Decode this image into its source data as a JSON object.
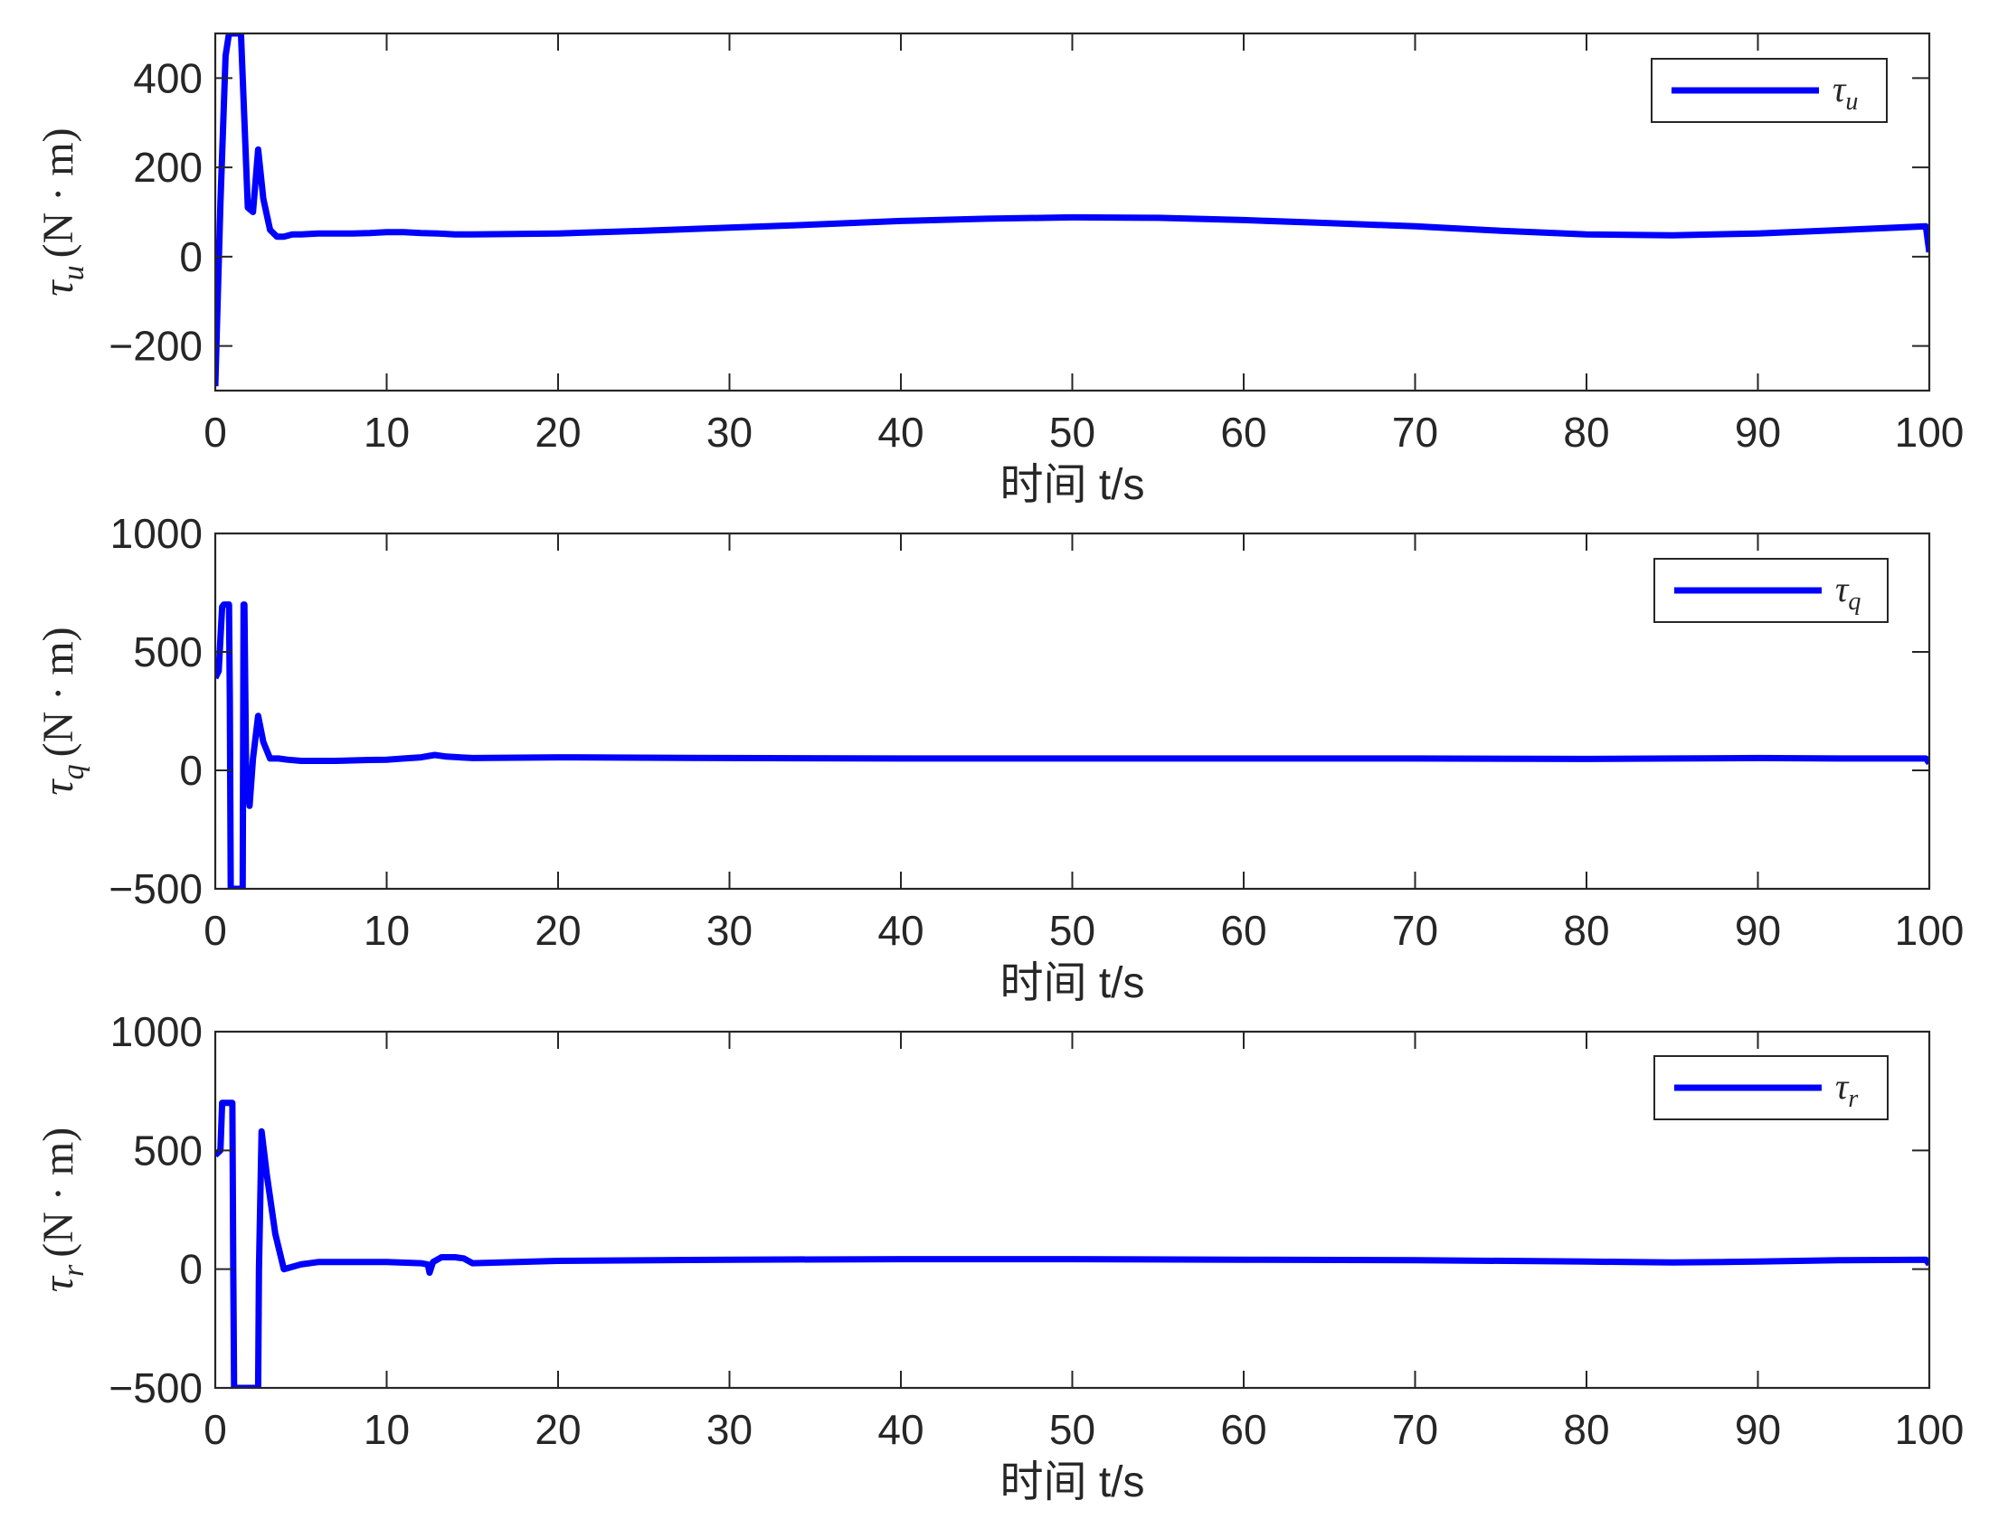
{
  "chart_data": [
    {
      "type": "line",
      "xlabel": "时间 t/s",
      "ylabel_symbol": "τ",
      "ylabel_subscript": "u",
      "ylabel_unit": "(N · m)",
      "xlim": [
        0,
        100
      ],
      "ylim": [
        -300,
        500
      ],
      "xticks": [
        0,
        10,
        20,
        30,
        40,
        50,
        60,
        70,
        80,
        90,
        100
      ],
      "yticks": [
        -200,
        0,
        200,
        400
      ],
      "ytick_labels": [
        "−200",
        "0",
        "200",
        "400"
      ],
      "grid": false,
      "legend_location": "top-right",
      "series": [
        {
          "name_symbol": "τ",
          "name_subscript": "u",
          "color": "#0000ff",
          "x": [
            0,
            0.3,
            0.6,
            0.8,
            0.9,
            1.5,
            1.9,
            2.2,
            2.5,
            2.8,
            3.2,
            3.6,
            4.0,
            4.5,
            5,
            6,
            7,
            8,
            9,
            10,
            11,
            12,
            13,
            14,
            15,
            20,
            25,
            30,
            35,
            40,
            45,
            50,
            55,
            60,
            65,
            70,
            75,
            80,
            85,
            90,
            95,
            99.8,
            100
          ],
          "y": [
            -290,
            120,
            450,
            500,
            500,
            500,
            110,
            100,
            240,
            130,
            60,
            45,
            45,
            50,
            50,
            52,
            52,
            52,
            53,
            55,
            55,
            53,
            52,
            50,
            50,
            52,
            58,
            65,
            72,
            80,
            85,
            88,
            87,
            82,
            75,
            68,
            58,
            50,
            48,
            52,
            60,
            68,
            10
          ]
        }
      ]
    },
    {
      "type": "line",
      "xlabel": "时间 t/s",
      "ylabel_symbol": "τ",
      "ylabel_subscript": "q",
      "ylabel_unit": "(N · m)",
      "xlim": [
        0,
        100
      ],
      "ylim": [
        -500,
        1000
      ],
      "xticks": [
        0,
        10,
        20,
        30,
        40,
        50,
        60,
        70,
        80,
        90,
        100
      ],
      "yticks": [
        -500,
        0,
        500,
        1000
      ],
      "ytick_labels": [
        "−500",
        "0",
        "500",
        "1000"
      ],
      "grid": false,
      "legend_location": "top-right",
      "series": [
        {
          "name_symbol": "τ",
          "name_subscript": "q",
          "color": "#0000ff",
          "x": [
            0,
            0.2,
            0.4,
            0.5,
            0.6,
            0.7,
            0.8,
            0.85,
            0.9,
            1.0,
            1.6,
            1.65,
            1.7,
            1.8,
            2.0,
            2.2,
            2.5,
            2.8,
            3.2,
            3.7,
            4.2,
            5,
            6,
            7,
            8,
            9,
            10,
            11,
            12,
            12.8,
            13.5,
            15,
            20,
            30,
            40,
            50,
            60,
            70,
            80,
            85,
            90,
            95,
            99.8,
            100
          ],
          "y": [
            390,
            420,
            690,
            700,
            700,
            700,
            700,
            300,
            -500,
            -500,
            -500,
            700,
            700,
            0,
            -150,
            50,
            230,
            120,
            50,
            50,
            45,
            40,
            40,
            40,
            42,
            44,
            45,
            50,
            55,
            65,
            58,
            52,
            55,
            52,
            50,
            50,
            50,
            50,
            48,
            50,
            52,
            50,
            50,
            30
          ]
        }
      ]
    },
    {
      "type": "line",
      "xlabel": "时间 t/s",
      "ylabel_symbol": "τ",
      "ylabel_subscript": "r",
      "ylabel_unit": "(N · m)",
      "xlim": [
        0,
        100
      ],
      "ylim": [
        -500,
        1000
      ],
      "xticks": [
        0,
        10,
        20,
        30,
        40,
        50,
        60,
        70,
        80,
        90,
        100
      ],
      "yticks": [
        -500,
        0,
        500,
        1000
      ],
      "ytick_labels": [
        "−500",
        "0",
        "500",
        "1000"
      ],
      "grid": false,
      "legend_location": "top-right",
      "series": [
        {
          "name_symbol": "τ",
          "name_subscript": "r",
          "color": "#0000ff",
          "x": [
            0,
            0.3,
            0.4,
            1.0,
            1.05,
            1.1,
            2.5,
            2.55,
            2.7,
            3.0,
            3.5,
            4.0,
            5,
            6,
            8,
            10,
            12,
            12.4,
            12.5,
            12.7,
            13.2,
            14.0,
            14.5,
            15,
            20,
            30,
            40,
            50,
            60,
            70,
            80,
            85,
            90,
            95,
            99.8,
            100
          ],
          "y": [
            480,
            500,
            700,
            700,
            0,
            -500,
            -500,
            0,
            580,
            400,
            150,
            0,
            20,
            30,
            30,
            30,
            25,
            20,
            -15,
            30,
            50,
            50,
            45,
            25,
            35,
            40,
            42,
            42,
            40,
            38,
            32,
            28,
            32,
            38,
            40,
            20
          ]
        }
      ]
    }
  ]
}
